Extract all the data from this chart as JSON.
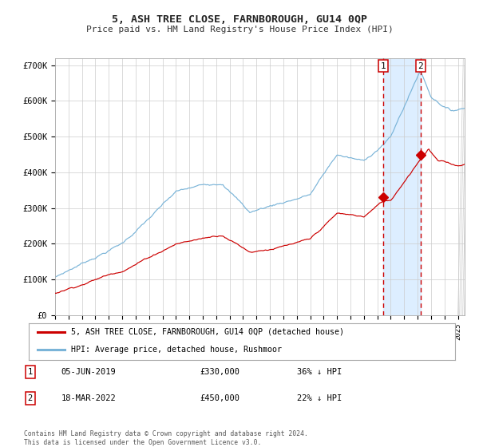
{
  "title": "5, ASH TREE CLOSE, FARNBOROUGH, GU14 0QP",
  "subtitle": "Price paid vs. HM Land Registry's House Price Index (HPI)",
  "ylim": [
    0,
    720000
  ],
  "xlim_start": 1995.0,
  "xlim_end": 2025.5,
  "hpi_color": "#7ab4d8",
  "price_color": "#cc0000",
  "background_color": "#ffffff",
  "grid_color": "#cccccc",
  "highlight_bg": "#ddeeff",
  "vline_color": "#cc0000",
  "marker1_date_x": 2019.42,
  "marker1_y": 330000,
  "marker2_date_x": 2022.21,
  "marker2_y": 450000,
  "legend_line1": "5, ASH TREE CLOSE, FARNBOROUGH, GU14 0QP (detached house)",
  "legend_line2": "HPI: Average price, detached house, Rushmoor",
  "table_row1_date": "05-JUN-2019",
  "table_row1_price": "£330,000",
  "table_row1_hpi": "36% ↓ HPI",
  "table_row2_date": "18-MAR-2022",
  "table_row2_price": "£450,000",
  "table_row2_hpi": "22% ↓ HPI",
  "footer": "Contains HM Land Registry data © Crown copyright and database right 2024.\nThis data is licensed under the Open Government Licence v3.0.",
  "yticks": [
    0,
    100000,
    200000,
    300000,
    400000,
    500000,
    600000,
    700000
  ],
  "ytick_labels": [
    "£0",
    "£100K",
    "£200K",
    "£300K",
    "£400K",
    "£500K",
    "£600K",
    "£700K"
  ]
}
